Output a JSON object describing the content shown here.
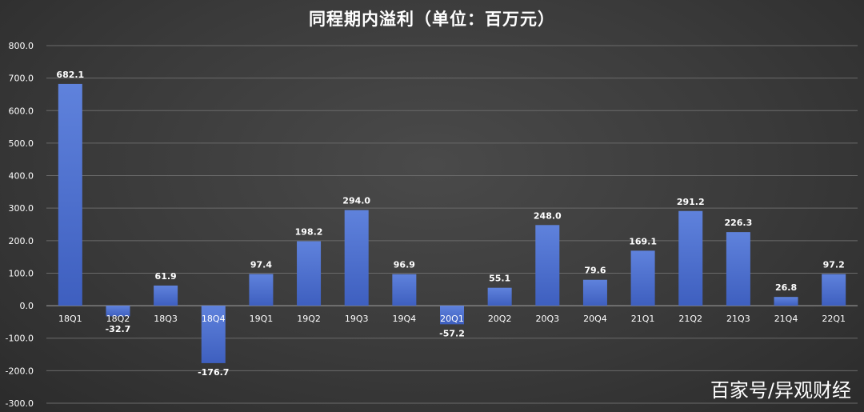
{
  "chart_data": {
    "type": "bar",
    "title": "同程期内溢利（单位：百万元）",
    "categories": [
      "18Q1",
      "18Q2",
      "18Q3",
      "18Q4",
      "19Q1",
      "19Q2",
      "19Q3",
      "19Q4",
      "20Q1",
      "20Q2",
      "20Q3",
      "20Q4",
      "21Q1",
      "21Q2",
      "21Q3",
      "21Q4",
      "22Q1"
    ],
    "values": [
      682.1,
      -32.7,
      61.9,
      -176.7,
      97.4,
      198.2,
      294.0,
      96.9,
      -57.2,
      55.1,
      248.0,
      79.6,
      169.1,
      291.2,
      226.3,
      26.8,
      97.2
    ],
    "value_labels": [
      "682.1",
      "-32.7",
      "61.9",
      "-176.7",
      "97.4",
      "198.2",
      "294.0",
      "96.9",
      "-57.2",
      "55.1",
      "248.0",
      "79.6",
      "169.1",
      "291.2",
      "226.3",
      "26.8",
      "97.2"
    ],
    "ylim": [
      -300,
      800
    ],
    "yticks": [
      800,
      700,
      600,
      500,
      400,
      300,
      200,
      100,
      0,
      -100,
      -200,
      -300
    ],
    "ytick_labels": [
      "800.0",
      "700.0",
      "600.0",
      "500.0",
      "400.0",
      "300.0",
      "200.0",
      "100.0",
      "0.0",
      "-100.0",
      "-200.0",
      "-300.0"
    ],
    "grid": true,
    "legend": "none",
    "bar_color": "#4a6fd0"
  },
  "watermark": "百家号/异观财经"
}
